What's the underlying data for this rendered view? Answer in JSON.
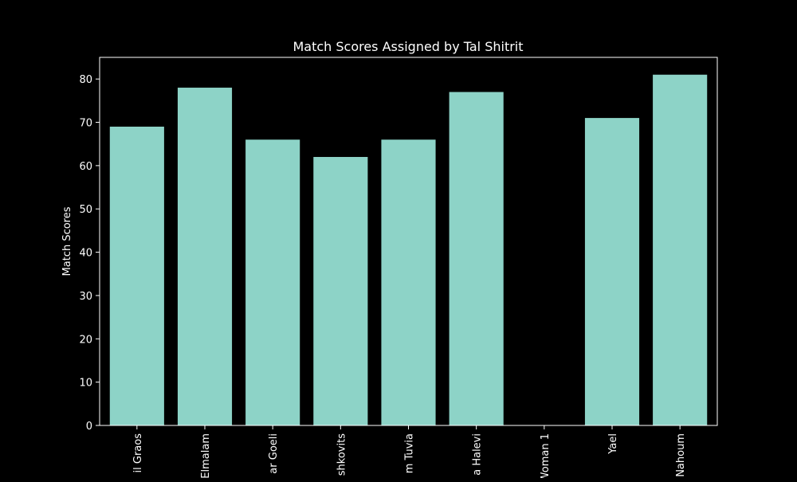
{
  "chart_data": {
    "type": "bar",
    "title": "Match Scores Assigned by Tal Shitrit",
    "xlabel": "",
    "ylabel": "Match Scores",
    "categories": [
      "il Graos",
      "Elmalam",
      "ar Goeli",
      "shkovits",
      "m Tuvia",
      "a Halevi",
      "Woman 1",
      "Yael",
      "Nahoum"
    ],
    "values": [
      69,
      78,
      66,
      62,
      66,
      77,
      0,
      71,
      81
    ],
    "ylim": [
      0,
      85
    ],
    "yticks": [
      0,
      10,
      20,
      30,
      40,
      50,
      60,
      70,
      80
    ],
    "grid": false,
    "bar_color": "#8dd3c7",
    "background": "#000000",
    "axis_color": "#ffffff"
  }
}
